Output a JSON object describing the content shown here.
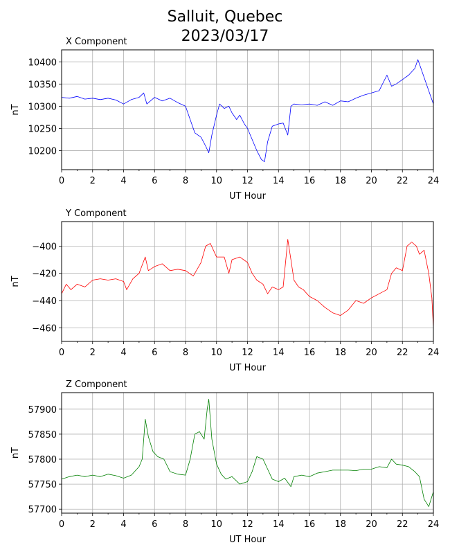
{
  "title_line1": "Salluit, Quebec",
  "title_line2": "2023/03/17",
  "chart_data": [
    {
      "type": "line",
      "title": "X Component",
      "xlabel": "UT Hour",
      "ylabel": "nT",
      "xlim": [
        0,
        24
      ],
      "ylim": [
        10157,
        10427
      ],
      "xticks": [
        0,
        2,
        4,
        6,
        8,
        10,
        12,
        14,
        16,
        18,
        20,
        22,
        24
      ],
      "yticks": [
        10200,
        10250,
        10300,
        10350,
        10400
      ],
      "grid": true,
      "color": "#0000ff",
      "series": [
        {
          "x": [
            0,
            0.5,
            1,
            1.5,
            2,
            2.5,
            3,
            3.5,
            4,
            4.5,
            5,
            5.3,
            5.5,
            6,
            6.5,
            7,
            7.5,
            8,
            8.3,
            8.6,
            9,
            9.3,
            9.5,
            9.7,
            10,
            10.2,
            10.5,
            10.8,
            11,
            11.3,
            11.5,
            11.8,
            12,
            12.3,
            12.6,
            12.9,
            13.1,
            13.3,
            13.6,
            14,
            14.3,
            14.6,
            14.8,
            15,
            15.5,
            16,
            16.5,
            17,
            17.5,
            18,
            18.5,
            19,
            19.5,
            20,
            20.5,
            21,
            21.3,
            21.6,
            22,
            22.4,
            22.8,
            23,
            23.2,
            23.5,
            23.8,
            24
          ],
          "y": [
            10320,
            10318,
            10322,
            10316,
            10318,
            10315,
            10318,
            10314,
            10305,
            10315,
            10320,
            10330,
            10305,
            10320,
            10312,
            10318,
            10308,
            10300,
            10270,
            10240,
            10230,
            10210,
            10195,
            10235,
            10280,
            10305,
            10295,
            10300,
            10285,
            10270,
            10280,
            10260,
            10250,
            10225,
            10200,
            10180,
            10175,
            10220,
            10255,
            10260,
            10262,
            10235,
            10300,
            10305,
            10303,
            10305,
            10302,
            10310,
            10302,
            10312,
            10310,
            10318,
            10325,
            10330,
            10335,
            10370,
            10345,
            10350,
            10360,
            10370,
            10385,
            10405,
            10385,
            10355,
            10325,
            10305
          ]
        }
      ]
    },
    {
      "type": "line",
      "title": "Y Component",
      "xlabel": "UT Hour",
      "ylabel": "nT",
      "xlim": [
        0,
        24
      ],
      "ylim": [
        -470,
        -382
      ],
      "xticks": [
        0,
        2,
        4,
        6,
        8,
        10,
        12,
        14,
        16,
        18,
        20,
        22,
        24
      ],
      "yticks": [
        -460,
        -440,
        -420,
        -400
      ],
      "grid": true,
      "color": "#ff0000",
      "series": [
        {
          "x": [
            0,
            0.3,
            0.6,
            1,
            1.5,
            2,
            2.5,
            3,
            3.5,
            4,
            4.2,
            4.6,
            5,
            5.4,
            5.6,
            6,
            6.5,
            7,
            7.5,
            8,
            8.5,
            9,
            9.3,
            9.6,
            9.8,
            10,
            10.5,
            10.8,
            11,
            11.5,
            12,
            12.3,
            12.6,
            13,
            13.3,
            13.6,
            14,
            14.3,
            14.6,
            14.8,
            15,
            15.3,
            15.6,
            16,
            16.5,
            17,
            17.5,
            18,
            18.5,
            19,
            19.5,
            20,
            20.5,
            21,
            21.3,
            21.6,
            22,
            22.3,
            22.6,
            22.9,
            23.1,
            23.4,
            23.7,
            23.9,
            24
          ],
          "y": [
            -435,
            -428,
            -432,
            -428,
            -430,
            -425,
            -424,
            -425,
            -424,
            -426,
            -432,
            -424,
            -420,
            -408,
            -418,
            -415,
            -413,
            -418,
            -417,
            -418,
            -422,
            -412,
            -400,
            -398,
            -403,
            -408,
            -408,
            -420,
            -410,
            -408,
            -412,
            -420,
            -425,
            -428,
            -435,
            -430,
            -432,
            -430,
            -395,
            -410,
            -425,
            -430,
            -432,
            -437,
            -440,
            -445,
            -449,
            -451,
            -447,
            -440,
            -442,
            -438,
            -435,
            -432,
            -420,
            -416,
            -418,
            -400,
            -397,
            -400,
            -406,
            -403,
            -420,
            -438,
            -460
          ]
        }
      ]
    },
    {
      "type": "line",
      "title": "Z Component",
      "xlabel": "UT Hour",
      "ylabel": "nT",
      "xlim": [
        0,
        24
      ],
      "ylim": [
        57692,
        57933
      ],
      "xticks": [
        0,
        2,
        4,
        6,
        8,
        10,
        12,
        14,
        16,
        18,
        20,
        22,
        24
      ],
      "yticks": [
        57700,
        57750,
        57800,
        57850,
        57900
      ],
      "grid": true,
      "color": "#008000",
      "series": [
        {
          "x": [
            0,
            0.5,
            1,
            1.5,
            2,
            2.5,
            3,
            3.5,
            4,
            4.5,
            5,
            5.2,
            5.4,
            5.6,
            5.9,
            6.2,
            6.6,
            7,
            7.5,
            8,
            8.3,
            8.6,
            8.9,
            9.2,
            9.4,
            9.5,
            9.7,
            10,
            10.3,
            10.6,
            11,
            11.5,
            12,
            12.3,
            12.6,
            13,
            13.3,
            13.6,
            14,
            14.4,
            14.8,
            15,
            15.5,
            16,
            16.5,
            17,
            17.5,
            18,
            18.5,
            19,
            19.5,
            20,
            20.5,
            21,
            21.3,
            21.6,
            22,
            22.4,
            22.8,
            23.1,
            23.4,
            23.7,
            24
          ],
          "y": [
            57760,
            57765,
            57768,
            57765,
            57768,
            57765,
            57770,
            57767,
            57762,
            57768,
            57785,
            57800,
            57880,
            57845,
            57815,
            57805,
            57800,
            57775,
            57770,
            57768,
            57800,
            57850,
            57855,
            57840,
            57900,
            57920,
            57840,
            57790,
            57770,
            57760,
            57765,
            57750,
            57755,
            57775,
            57805,
            57800,
            57780,
            57760,
            57755,
            57762,
            57745,
            57765,
            57768,
            57765,
            57772,
            57775,
            57778,
            57778,
            57778,
            57777,
            57780,
            57780,
            57785,
            57783,
            57800,
            57790,
            57788,
            57785,
            57775,
            57765,
            57720,
            57705,
            57735
          ]
        }
      ]
    }
  ]
}
